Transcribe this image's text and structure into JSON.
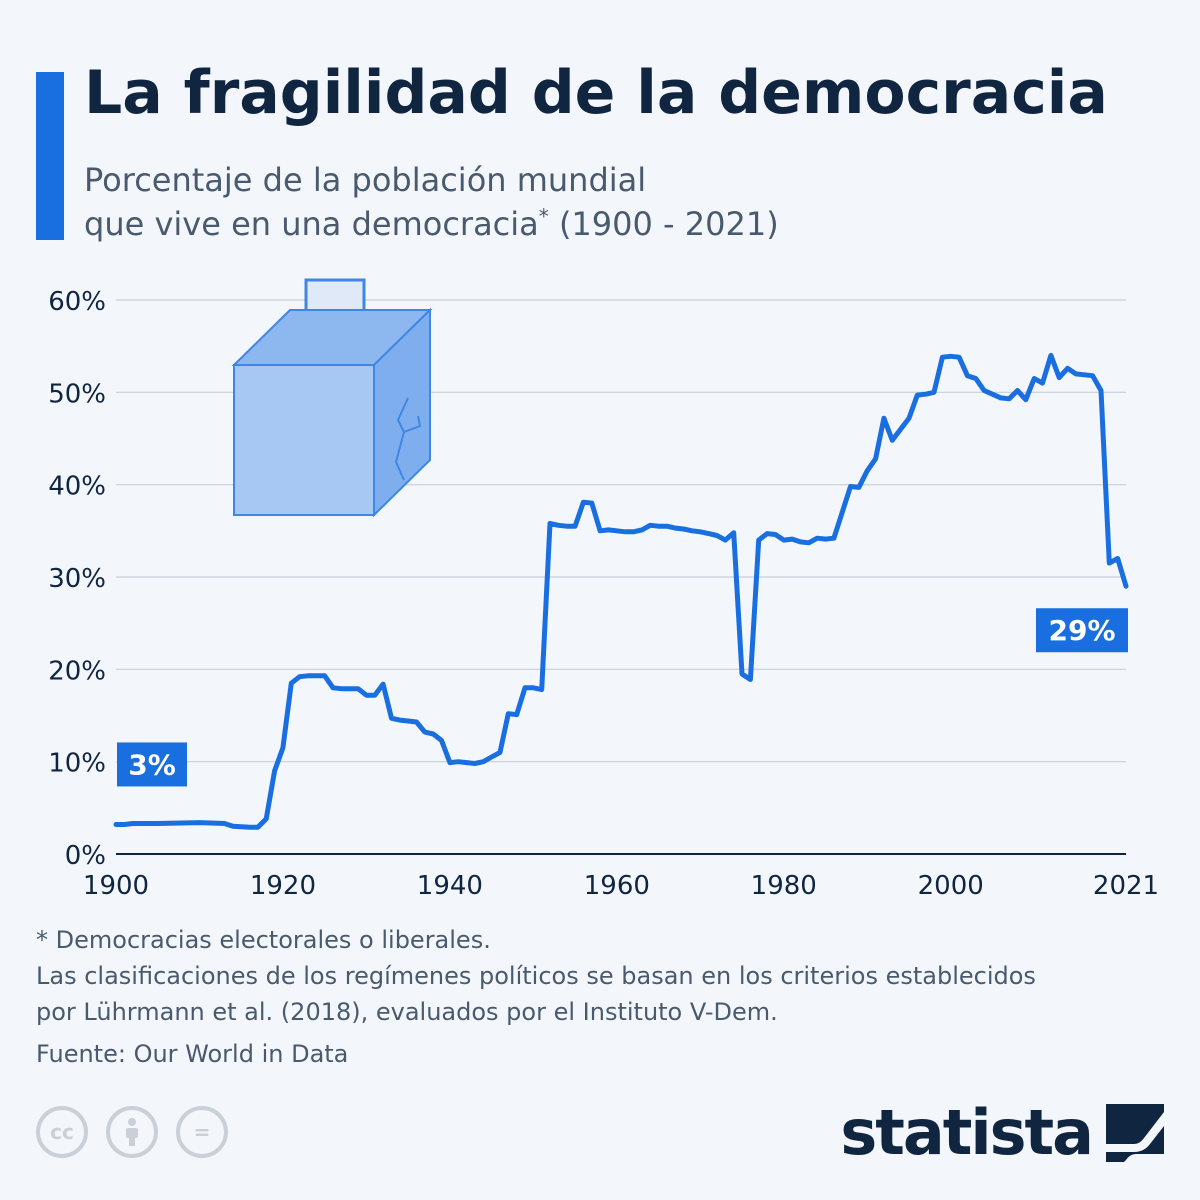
{
  "header": {
    "title": "La fragilidad de la democracia",
    "subtitle_line1": "Porcentaje de la población mundial",
    "subtitle_line2_a": "que vive en una democracia",
    "subtitle_sup": "*",
    "subtitle_line2_b": " (1900 - 2021)"
  },
  "colors": {
    "accent": "#1a6fe0",
    "line": "#1a6fe0",
    "text": "#0f2540",
    "grid": "#c7cfd9"
  },
  "chart_data": {
    "type": "line",
    "title": "La fragilidad de la democracia",
    "subtitle": "Porcentaje de la población mundial que vive en una democracia* (1900-2021)",
    "xlim": [
      1900,
      2021
    ],
    "ylim": [
      0,
      60
    ],
    "x_ticks": [
      "1900",
      "1920",
      "1940",
      "1960",
      "1980",
      "2000",
      "2021"
    ],
    "x_tick_values": [
      1900,
      1920,
      1940,
      1960,
      1980,
      2000,
      2021
    ],
    "y_ticks": [
      "0%",
      "10%",
      "20%",
      "30%",
      "40%",
      "50%",
      "60%"
    ],
    "y_tick_values": [
      0,
      10,
      20,
      30,
      40,
      50,
      60
    ],
    "grid": true,
    "series": [
      {
        "x": [
          1900,
          1901,
          1902,
          1905,
          1910,
          1913,
          1914,
          1916,
          1917,
          1918,
          1919,
          1920,
          1921,
          1922,
          1923,
          1924,
          1925,
          1926,
          1927,
          1928,
          1929,
          1930,
          1931,
          1932,
          1933,
          1934,
          1935,
          1936,
          1937,
          1938,
          1939,
          1940,
          1941,
          1942,
          1943,
          1944,
          1945,
          1946,
          1947,
          1948,
          1949,
          1950,
          1951,
          1952,
          1953,
          1954,
          1955,
          1956,
          1957,
          1958,
          1959,
          1960,
          1961,
          1962,
          1963,
          1964,
          1965,
          1966,
          1967,
          1968,
          1969,
          1970,
          1971,
          1972,
          1973,
          1974,
          1975,
          1976,
          1977,
          1978,
          1979,
          1980,
          1981,
          1982,
          1983,
          1984,
          1985,
          1986,
          1987,
          1988,
          1989,
          1990,
          1991,
          1992,
          1993,
          1994,
          1995,
          1996,
          1997,
          1998,
          1999,
          2000,
          2001,
          2002,
          2003,
          2004,
          2005,
          2006,
          2007,
          2008,
          2009,
          2010,
          2011,
          2012,
          2013,
          2014,
          2015,
          2016,
          2017,
          2018,
          2019,
          2020,
          2021
        ],
        "y": [
          3.2,
          3.2,
          3.3,
          3.3,
          3.4,
          3.3,
          3.0,
          2.9,
          2.9,
          3.8,
          9.0,
          11.5,
          18.5,
          19.2,
          19.3,
          19.3,
          19.3,
          18.0,
          17.9,
          17.9,
          17.9,
          17.2,
          17.2,
          18.4,
          14.7,
          14.5,
          14.4,
          14.3,
          13.2,
          13.0,
          12.3,
          9.9,
          10.0,
          9.9,
          9.8,
          10.0,
          10.5,
          11.0,
          15.2,
          15.1,
          18.0,
          18.0,
          17.8,
          35.8,
          35.6,
          35.5,
          35.5,
          38.1,
          38.0,
          35.0,
          35.1,
          35.0,
          34.9,
          34.9,
          35.1,
          35.6,
          35.5,
          35.5,
          35.3,
          35.2,
          35.0,
          34.9,
          34.7,
          34.5,
          34.0,
          34.8,
          19.5,
          18.9,
          34.0,
          34.7,
          34.6,
          34.0,
          34.1,
          33.8,
          33.7,
          34.2,
          34.1,
          34.2,
          37.0,
          39.8,
          39.7,
          41.5,
          42.8,
          47.2,
          44.8,
          46.0,
          47.2,
          49.7,
          49.8,
          50.0,
          53.8,
          53.9,
          53.8,
          51.8,
          51.5,
          50.2,
          49.8,
          49.4,
          49.3,
          50.2,
          49.2,
          51.5,
          51.0,
          54.0,
          51.6,
          52.6,
          52.0,
          51.9,
          51.8,
          50.2,
          31.5,
          32.0,
          29.0
        ]
      }
    ],
    "annotations": [
      {
        "label": "3%",
        "x": 1900,
        "y": 3.2
      },
      {
        "label": "29%",
        "x": 2021,
        "y": 29.0
      }
    ]
  },
  "footnotes": {
    "note1": "* Democracias electorales o liberales.",
    "note2_line1": "Las clasificaciones de los regímenes políticos se basan en los criterios establecidos",
    "note2_line2": "por Lührmann et al. (2018), evaluados por el Instituto V-Dem.",
    "source": "Fuente: Our World in Data"
  },
  "license_icons": [
    {
      "name": "cc-icon",
      "glyph": "cc"
    },
    {
      "name": "attribution-icon",
      "glyph": "♂"
    },
    {
      "name": "no-derivatives-icon",
      "glyph": "="
    }
  ],
  "brand": {
    "name": "statista"
  }
}
